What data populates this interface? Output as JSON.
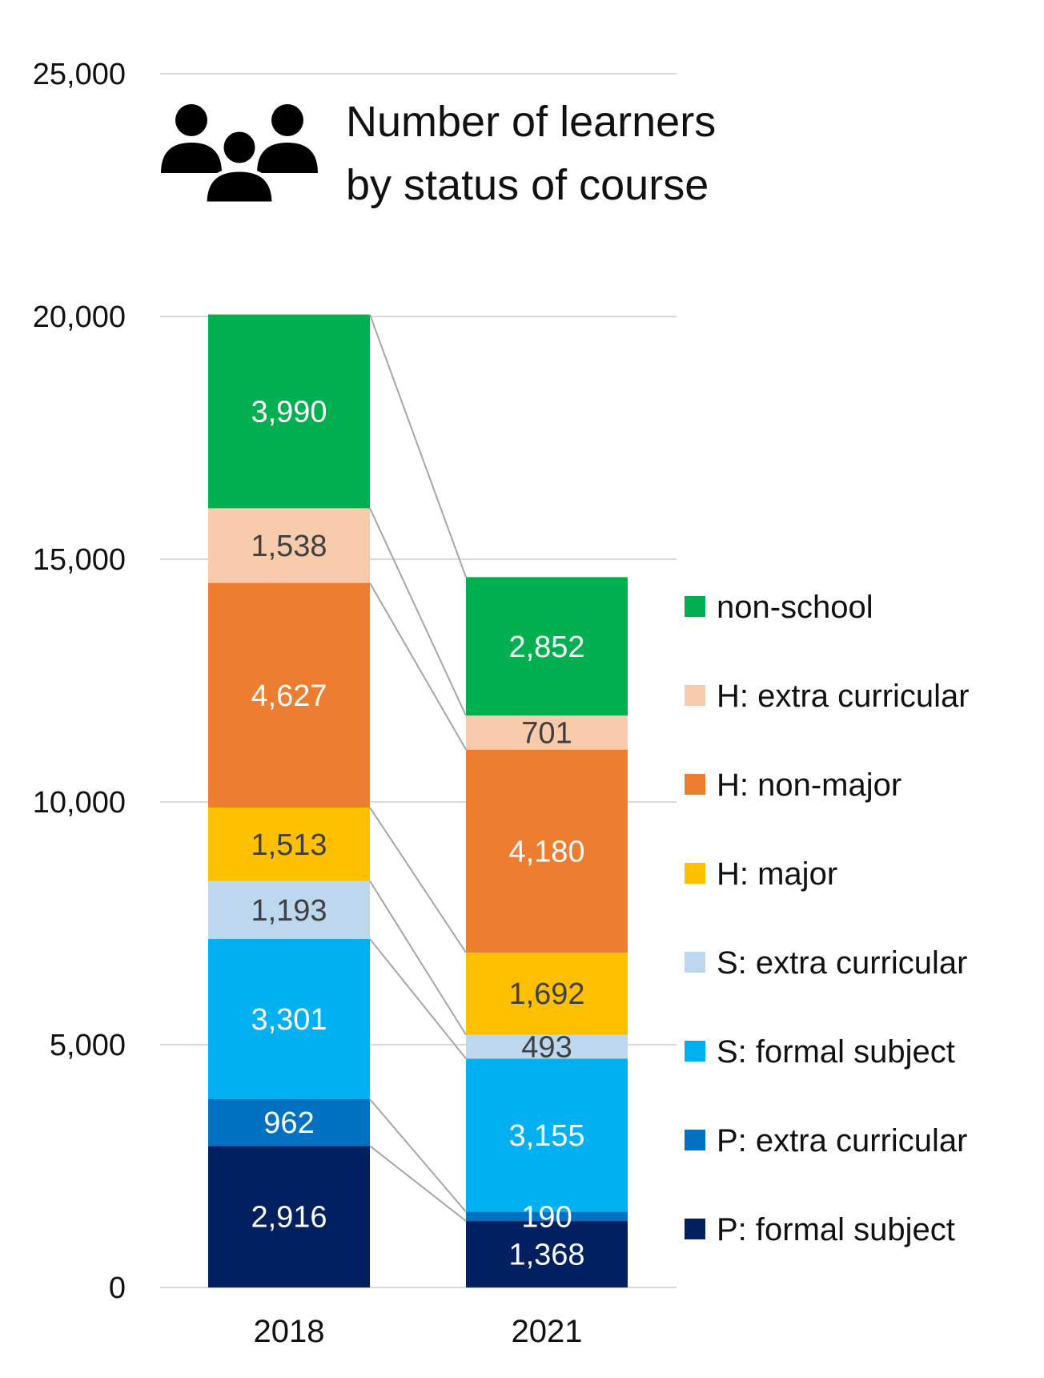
{
  "chart_data": {
    "type": "bar",
    "stacked": true,
    "title": "Number of learners by status of course",
    "title_lines": [
      "Number of learners",
      "by status of course"
    ],
    "title_icon": "people-group-icon",
    "categories": [
      "2018",
      "2021"
    ],
    "series": [
      {
        "name": "P: formal subject",
        "color": "#002060",
        "label_color": "#ffffff",
        "values": [
          2916,
          1368
        ],
        "labels": [
          "2,916",
          "1,368"
        ]
      },
      {
        "name": "P: extra curricular",
        "color": "#0070C0",
        "label_color": "#ffffff",
        "values": [
          962,
          190
        ],
        "labels": [
          "962",
          "190"
        ]
      },
      {
        "name": "S: formal subject",
        "color": "#00B0F0",
        "label_color": "#ffffff",
        "values": [
          3301,
          3155
        ],
        "labels": [
          "3,301",
          "3,155"
        ]
      },
      {
        "name": "S: extra curricular",
        "color": "#BDD7EE",
        "label_color": "#404040",
        "values": [
          1193,
          493
        ],
        "labels": [
          "1,193",
          "493"
        ]
      },
      {
        "name": "H: major",
        "color": "#FFC000",
        "label_color": "#404040",
        "values": [
          1513,
          1692
        ],
        "labels": [
          "1,513",
          "1,692"
        ]
      },
      {
        "name": "H: non-major",
        "color": "#ED7D31",
        "label_color": "#ffffff",
        "values": [
          4627,
          4180
        ],
        "labels": [
          "4,627",
          "4,180"
        ]
      },
      {
        "name": "H: extra curricular",
        "color": "#F8CBAD",
        "label_color": "#404040",
        "values": [
          1538,
          701
        ],
        "labels": [
          "1,538",
          "701"
        ]
      },
      {
        "name": "non-school",
        "color": "#00B050",
        "label_color": "#ffffff",
        "values": [
          3990,
          2852
        ],
        "labels": [
          "3,990",
          "2,852"
        ]
      }
    ],
    "y_ticks": [
      0,
      5000,
      10000,
      15000,
      20000,
      25000
    ],
    "y_tick_labels": [
      "0",
      "5,000",
      "10,000",
      "15,000",
      "20,000",
      "25,000"
    ],
    "ylim": [
      0,
      25000
    ],
    "grid": true,
    "series_lines": true,
    "legend": {
      "position": "right",
      "order": [
        "non-school",
        "H: extra curricular",
        "H: non-major",
        "H: major",
        "S: extra curricular",
        "S: formal subject",
        "P: extra curricular",
        "P: formal subject"
      ]
    },
    "colors": {
      "gridline": "#D9D9D9",
      "series_line": "#A6A6A6",
      "text": "#111111"
    }
  }
}
